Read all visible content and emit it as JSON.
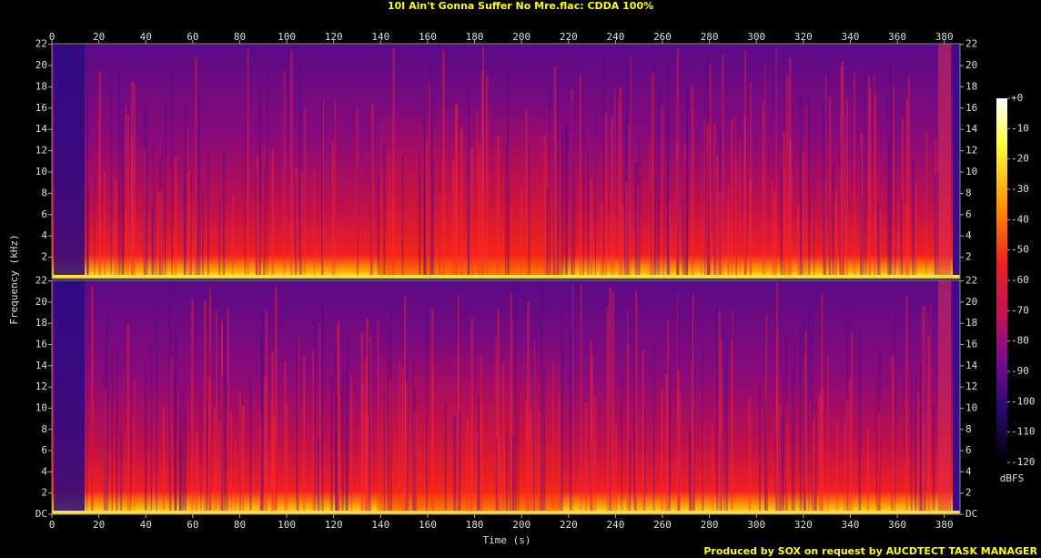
{
  "chart_data": [
    {
      "type": "spectrogram",
      "title": "10I Ain't Gonna Suffer No Mre.flac: CDDA 100%",
      "ylabel": "Frequency (kHz)",
      "xlim": [
        0,
        386.7
      ],
      "xticks": [
        0,
        20,
        40,
        60,
        80,
        100,
        120,
        140,
        160,
        180,
        200,
        220,
        240,
        260,
        280,
        300,
        320,
        340,
        360,
        380
      ],
      "ylim": [
        0,
        22.05
      ],
      "yticks": [
        2,
        4,
        6,
        8,
        10,
        12,
        14,
        16,
        18,
        20,
        22
      ],
      "colorbar": {
        "label": "dBFS",
        "lim": [
          -120,
          0
        ],
        "ticks": [
          {
            "value": 0,
            "label": "+0"
          },
          -10,
          -20,
          -30,
          -40,
          -50,
          -60,
          -70,
          -80,
          -90,
          -100,
          -110,
          -120
        ]
      }
    },
    {
      "type": "spectrogram",
      "xlabel": "Time (s)",
      "xlim": [
        0,
        386.7
      ],
      "xticks": [
        0,
        20,
        40,
        60,
        80,
        100,
        120,
        140,
        160,
        180,
        200,
        220,
        240,
        260,
        280,
        300,
        320,
        340,
        360,
        380
      ],
      "ylim": [
        0,
        22.05
      ],
      "yticks": [
        {
          "value": 0,
          "label": "DC"
        },
        2,
        4,
        6,
        8,
        10,
        12,
        14,
        16,
        18,
        20,
        22
      ]
    }
  ],
  "footer": "Produced by SOX on request by AUCDTECT TASK MANAGER"
}
